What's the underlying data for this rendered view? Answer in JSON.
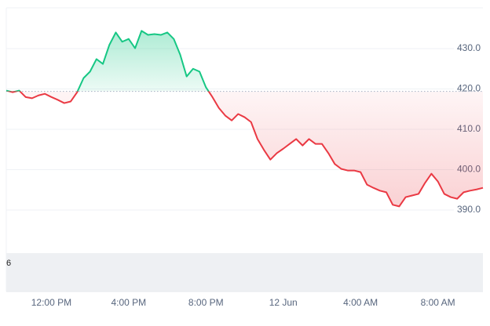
{
  "chart_data": {
    "type": "baseline-line",
    "categories": [
      null,
      null,
      null,
      null,
      null,
      null,
      null,
      "12:00 PM",
      null,
      null,
      null,
      null,
      null,
      null,
      null,
      null,
      null,
      null,
      null,
      "4:00 PM",
      null,
      null,
      null,
      null,
      null,
      null,
      null,
      null,
      null,
      null,
      null,
      "8:00 PM",
      null,
      null,
      null,
      null,
      null,
      null,
      null,
      null,
      null,
      null,
      null,
      "12 Jun",
      null,
      null,
      null,
      null,
      null,
      null,
      null,
      null,
      null,
      null,
      null,
      "4:00 AM",
      null,
      null,
      null,
      null,
      null,
      null,
      null,
      null,
      null,
      null,
      null,
      "8:00 AM",
      null,
      null,
      null,
      null,
      null,
      null,
      null
    ],
    "values": [
      419.6,
      419.2,
      419.6,
      418,
      417.7,
      418.4,
      418.8,
      418,
      417.3,
      416.5,
      416.9,
      419.2,
      422.7,
      424.3,
      427.4,
      426.2,
      430.9,
      434,
      431.7,
      432.4,
      430.1,
      434.4,
      433.4,
      433.6,
      433.4,
      434,
      432.4,
      428.5,
      423.1,
      425,
      424.3,
      420.4,
      418,
      415.3,
      413.4,
      412.2,
      413.8,
      413,
      411.8,
      407.6,
      404.9,
      402.5,
      404.1,
      405.2,
      406.4,
      407.6,
      406,
      407.6,
      406.4,
      406.4,
      404.1,
      401.4,
      400.2,
      399.8,
      399.8,
      399.4,
      396.3,
      395.5,
      394.8,
      394.4,
      391.3,
      390.9,
      393.2,
      393.6,
      394,
      396.7,
      399,
      397.1,
      394,
      393.2,
      392.8,
      394.4,
      394.8,
      395.1,
      395.5
    ],
    "baseline": 419.4,
    "up_color": "#16c784",
    "down_color": "#ea3943",
    "ylim": [
      380.3,
      440.1
    ],
    "yticks": [
      {
        "value": 390,
        "label": "390.0"
      },
      {
        "value": 400,
        "label": "400.0"
      },
      {
        "value": 410,
        "label": "410.0"
      },
      {
        "value": 420,
        "label": "420.0"
      },
      {
        "value": 430,
        "label": "430.0"
      }
    ],
    "grid": true,
    "volume_label": "6"
  }
}
